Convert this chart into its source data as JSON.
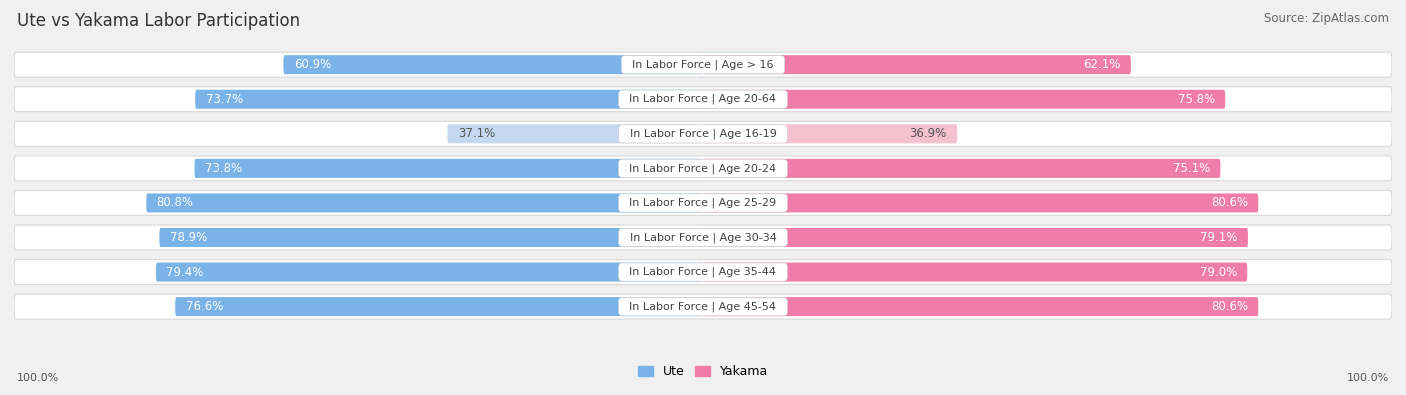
{
  "title": "Ute vs Yakama Labor Participation",
  "source": "Source: ZipAtlas.com",
  "categories": [
    "In Labor Force | Age > 16",
    "In Labor Force | Age 20-64",
    "In Labor Force | Age 16-19",
    "In Labor Force | Age 20-24",
    "In Labor Force | Age 25-29",
    "In Labor Force | Age 30-34",
    "In Labor Force | Age 35-44",
    "In Labor Force | Age 45-54"
  ],
  "ute_values": [
    60.9,
    73.7,
    37.1,
    73.8,
    80.8,
    78.9,
    79.4,
    76.6
  ],
  "yakama_values": [
    62.1,
    75.8,
    36.9,
    75.1,
    80.6,
    79.1,
    79.0,
    80.6
  ],
  "ute_colors": [
    "#7ab3e8",
    "#7ab3e8",
    "#c4d9f0",
    "#7ab3e8",
    "#7ab3e8",
    "#7ab3e8",
    "#7ab3e8",
    "#7ab3e8"
  ],
  "yakama_colors": [
    "#f07ca8",
    "#f07ca8",
    "#f5c0d0",
    "#f07ca8",
    "#f07ca8",
    "#f07ca8",
    "#f07ca8",
    "#f07ca8"
  ],
  "ute_label": "Ute",
  "yakama_label": "Yakama",
  "background_color": "#f0f0f0",
  "row_bg_color": "#ffffff",
  "row_border_color": "#d8d8d8",
  "title_fontsize": 12,
  "source_fontsize": 8.5,
  "bar_label_fontsize": 8.5,
  "category_fontsize": 8
}
